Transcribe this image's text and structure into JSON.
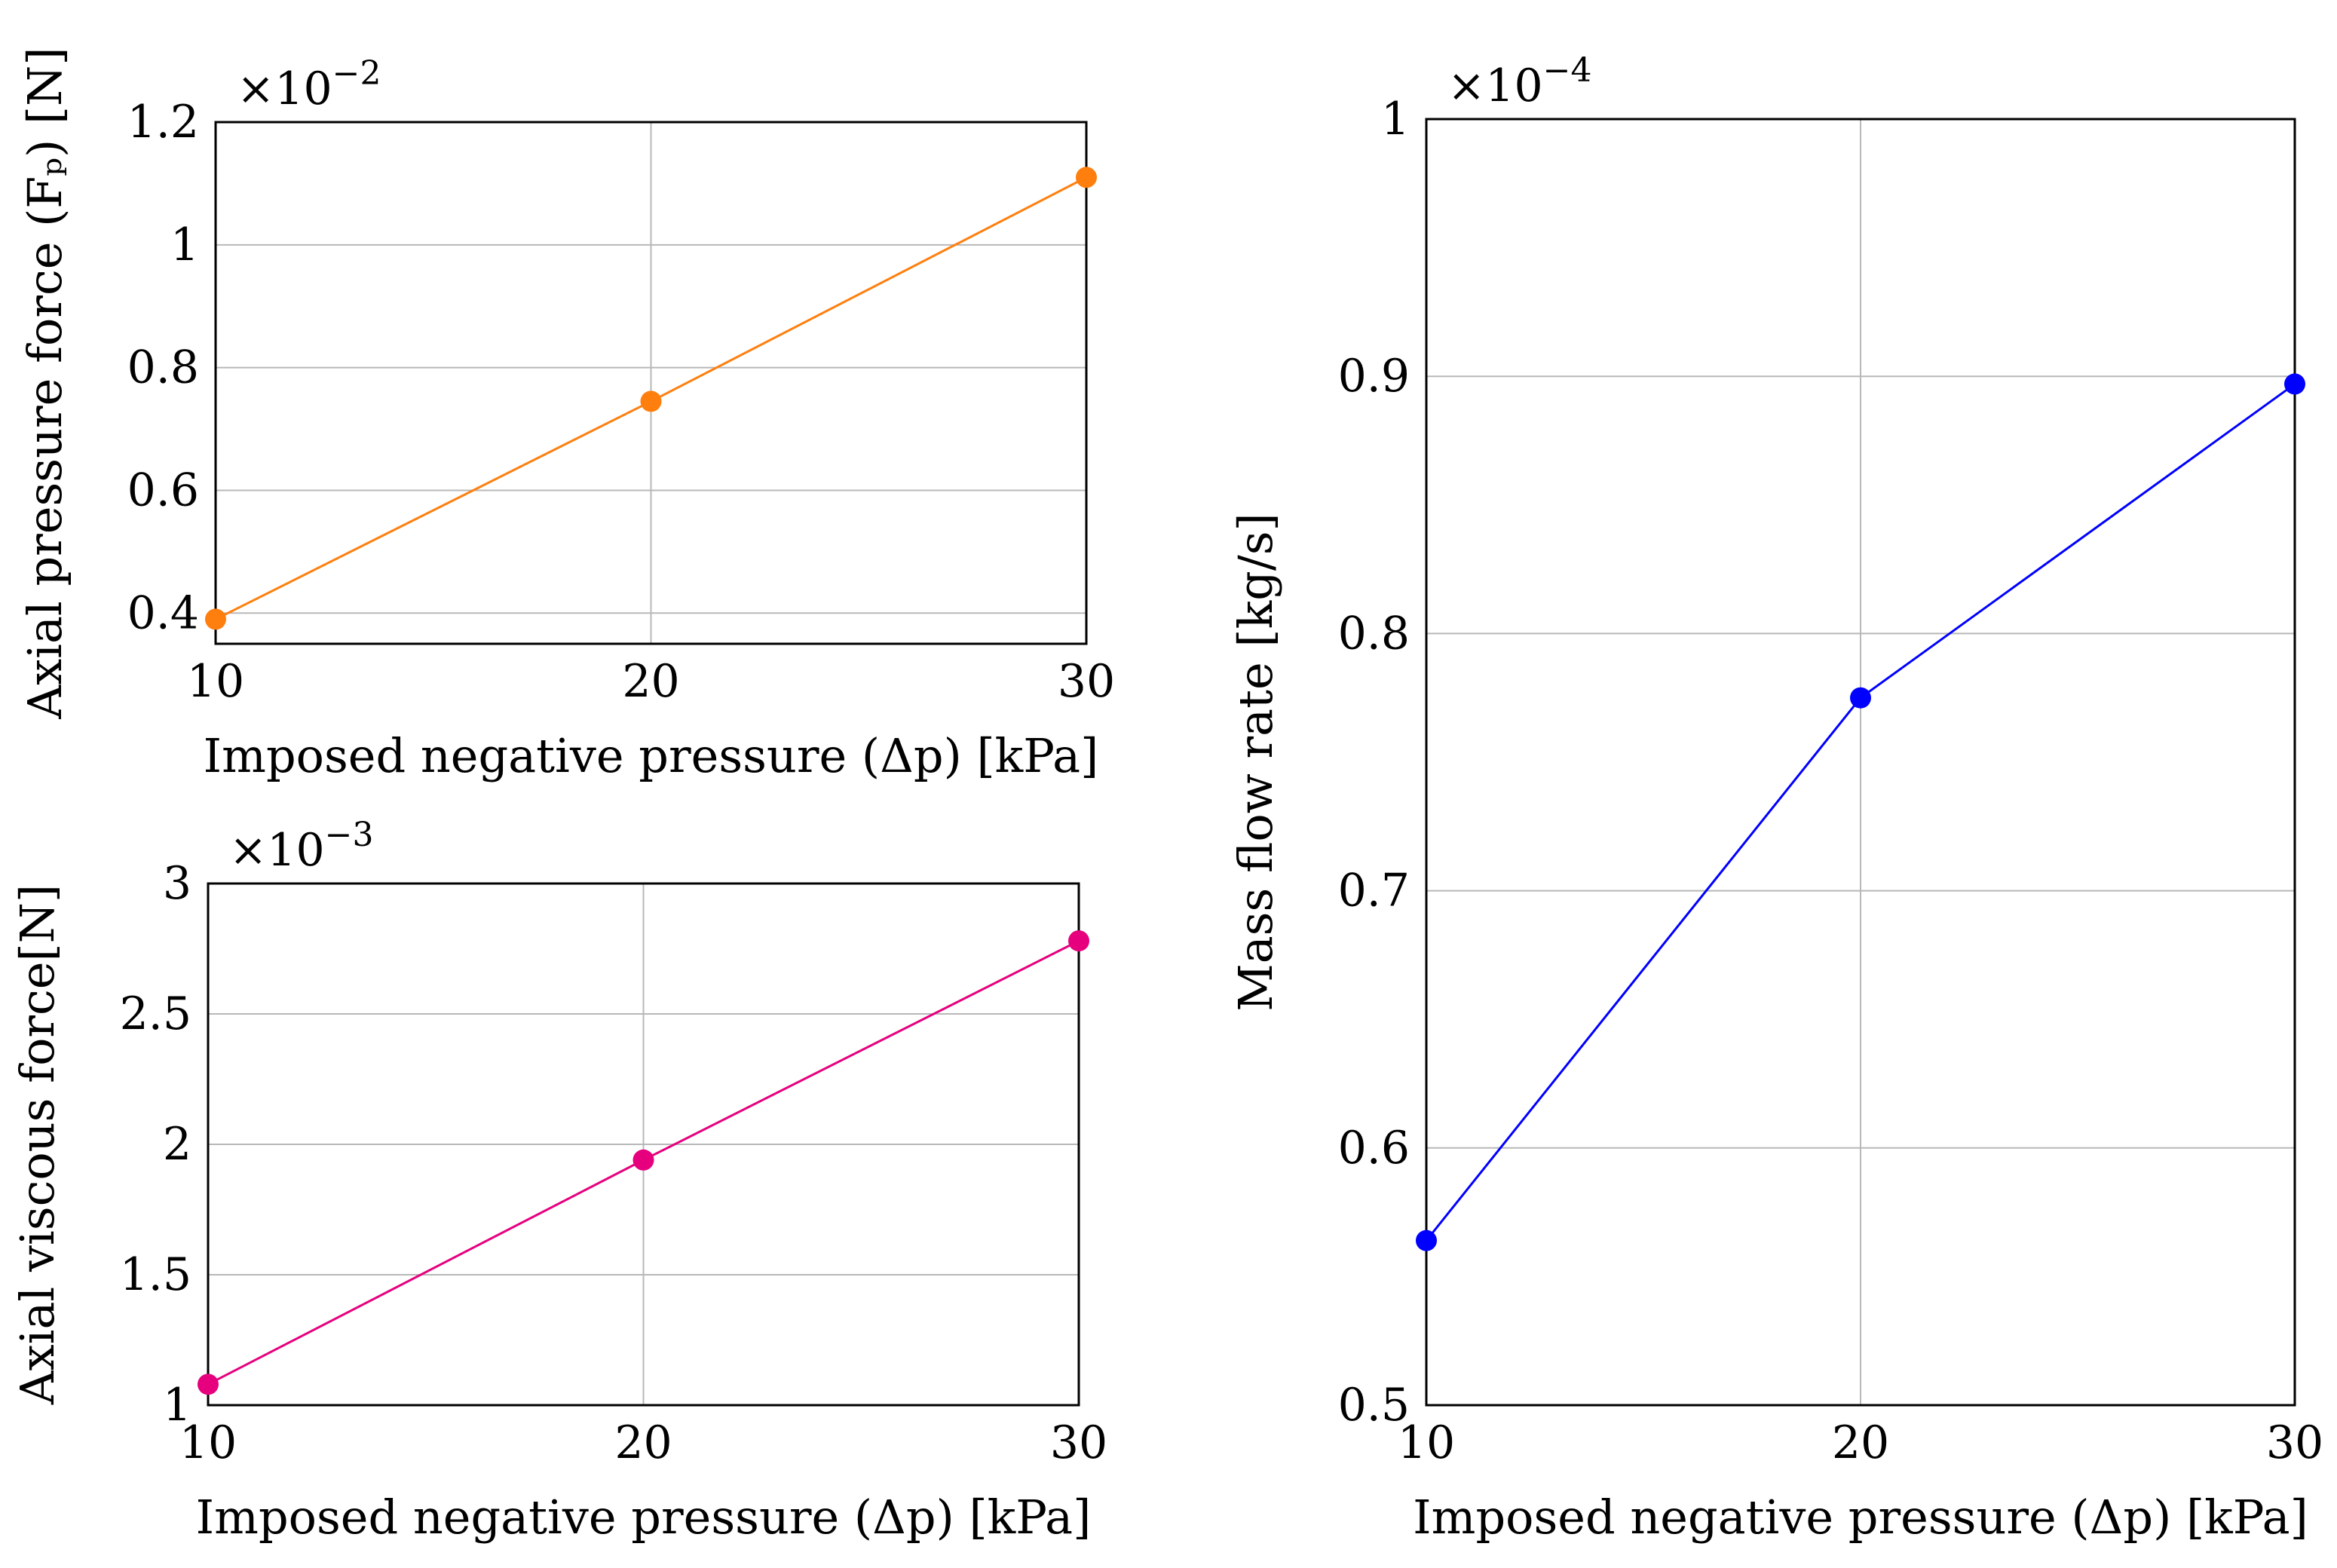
{
  "chart_data": [
    {
      "type": "line",
      "id": "pressure",
      "xlabel": "Imposed negative pressure (Δp) [kPa]",
      "ylabel": "Axial pressure force (Fₚ) [N]",
      "multiplier": {
        "base": "×10",
        "exponent": "−2"
      },
      "x": [
        10,
        20,
        30
      ],
      "xlim": [
        10,
        30
      ],
      "ylim": [
        0.35,
        1.2
      ],
      "xticks": [
        10,
        20,
        30
      ],
      "xtick_labels": [
        "10",
        "20",
        "30"
      ],
      "yticks": [
        0.4,
        0.6,
        0.8,
        1.0,
        1.2
      ],
      "ytick_labels": [
        "0.4",
        "0.6",
        "0.8",
        "1",
        "1.2"
      ],
      "grid": true,
      "series": [
        {
          "name": "Axial pressure force",
          "color": "#ff7f0e",
          "values": [
            0.39,
            0.745,
            1.11
          ]
        }
      ]
    },
    {
      "type": "line",
      "id": "viscous",
      "xlabel": "Imposed negative pressure (Δp) [kPa]",
      "ylabel": "Axial viscous force[N]",
      "multiplier": {
        "base": "×10",
        "exponent": "−3"
      },
      "x": [
        10,
        20,
        30
      ],
      "xlim": [
        10,
        30
      ],
      "ylim": [
        1,
        3
      ],
      "xticks": [
        10,
        20,
        30
      ],
      "xtick_labels": [
        "10",
        "20",
        "30"
      ],
      "yticks": [
        1,
        1.5,
        2,
        2.5,
        3
      ],
      "ytick_labels": [
        "1",
        "1.5",
        "2",
        "2.5",
        "3"
      ],
      "grid": true,
      "series": [
        {
          "name": "Axial viscous force",
          "color": "#e6007e",
          "values": [
            1.08,
            1.94,
            2.78
          ]
        }
      ]
    },
    {
      "type": "line",
      "id": "massflow",
      "xlabel": "Imposed negative pressure (Δp) [kPa]",
      "ylabel": "Mass flow rate [kg/s]",
      "multiplier": {
        "base": "×10",
        "exponent": "−4"
      },
      "x": [
        10,
        20,
        30
      ],
      "xlim": [
        10,
        30
      ],
      "ylim": [
        0.5,
        1.0
      ],
      "xticks": [
        10,
        20,
        30
      ],
      "xtick_labels": [
        "10",
        "20",
        "30"
      ],
      "yticks": [
        0.5,
        0.6,
        0.7,
        0.8,
        0.9,
        1.0
      ],
      "ytick_labels": [
        "0.5",
        "0.6",
        "0.7",
        "0.8",
        "0.9",
        "1"
      ],
      "grid": true,
      "series": [
        {
          "name": "Mass flow rate",
          "color": "#0000ff",
          "values": [
            0.564,
            0.775,
            0.897
          ]
        }
      ]
    }
  ]
}
